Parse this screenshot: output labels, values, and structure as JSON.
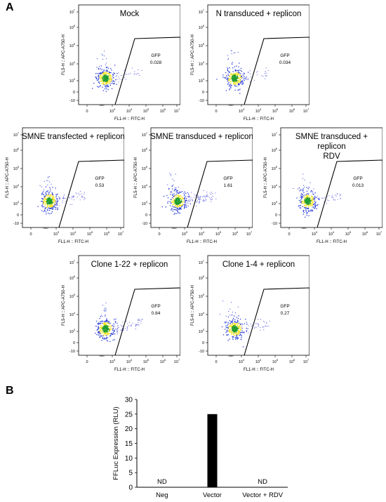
{
  "figure": {
    "label_a": "A",
    "label_b": "B"
  },
  "chart_data": [
    {
      "type": "scatter",
      "title": "Mock",
      "gate": {
        "label": "GFP",
        "value": "0.028"
      },
      "xlabel": "FL1-H :: FITC-H",
      "ylabel": "FL5-H :: APC-A750-H",
      "xticks": [
        "0",
        "10³",
        "10⁴",
        "10⁵",
        "10⁶",
        "10⁷"
      ],
      "yticks": [
        "-10",
        "0",
        "10³",
        "10⁴",
        "10⁵",
        "10⁶",
        "10⁷"
      ],
      "x_ticks": [
        "0",
        "10^3",
        "10^4",
        "10^5",
        "10^6",
        "10^7"
      ],
      "y_ticks": [
        "-10",
        "0",
        "10^3",
        "10^4",
        "10^5",
        "10^6",
        "10^7"
      ],
      "note": "flow cytometry dot plot; gate value is % GFP+"
    },
    {
      "type": "scatter",
      "title": "N transduced + replicon",
      "gate": {
        "label": "GFP",
        "value": "0.034"
      },
      "xlabel": "FL1-H :: FITC-H",
      "ylabel": "FL5-H :: APC-A750-H"
    },
    {
      "type": "scatter",
      "title": "SMNE transfected + replicon",
      "gate": {
        "label": "GFP",
        "value": "0.53"
      },
      "xlabel": "FL1-H :: FITC-H",
      "ylabel": "FL5-H :: APC-A750-H"
    },
    {
      "type": "scatter",
      "title": "SMNE transduced + replicon",
      "gate": {
        "label": "GFP",
        "value": "1.61"
      },
      "xlabel": "FL1-H :: FITC-H",
      "ylabel": "FL5-H :: APC-A750-H"
    },
    {
      "type": "scatter",
      "title": "SMNE transduced + replicon RDV",
      "gate": {
        "label": "GFP",
        "value": "0.013"
      },
      "xlabel": "FL1-H :: FITC-H",
      "ylabel": "FL5-H :: APC-A750-H"
    },
    {
      "type": "scatter",
      "title": "Clone 1-22 + replicon",
      "gate": {
        "label": "GFP",
        "value": "0.84"
      },
      "xlabel": "FL1-H :: FITC-H",
      "ylabel": "FL5-H :: APC-A750-H"
    },
    {
      "type": "scatter",
      "title": "Clone 1-4 + replicon",
      "gate": {
        "label": "GFP",
        "value": "0.27"
      },
      "xlabel": "FL1-H :: FITC-H",
      "ylabel": "FL5-H :: APC-A750-H"
    },
    {
      "type": "bar",
      "categories": [
        "Neg",
        "Vector",
        "Vector + RDV"
      ],
      "values": [
        0,
        25,
        0
      ],
      "data_labels": [
        "ND",
        "",
        "ND"
      ],
      "ylabel": "FFLuc Expression (RLU)",
      "ylim": [
        0,
        30
      ],
      "yticks": [
        0,
        5,
        10,
        15,
        20,
        25,
        30
      ],
      "bar_color": "#000000"
    }
  ],
  "flow_panels": [
    {
      "title_lines": [
        "Mock"
      ],
      "gate_label": "GFP",
      "gate_value": "0.028"
    },
    {
      "title_lines": [
        "N transduced + replicon"
      ],
      "gate_label": "GFP",
      "gate_value": "0.034"
    },
    {
      "title_lines": [
        "SMNE transfected + replicon"
      ],
      "gate_label": "GFP",
      "gate_value": "0.53"
    },
    {
      "title_lines": [
        "SMNE transduced + replicon"
      ],
      "gate_label": "GFP",
      "gate_value": "1.61"
    },
    {
      "title_lines": [
        "SMNE transduced +",
        "replicon",
        "RDV"
      ],
      "gate_label": "GFP",
      "gate_value": "0.013"
    },
    {
      "title_lines": [
        "Clone 1-22 + replicon"
      ],
      "gate_label": "GFP",
      "gate_value": "0.84"
    },
    {
      "title_lines": [
        "Clone 1-4 + replicon"
      ],
      "gate_label": "GFP",
      "gate_value": "0.27"
    }
  ],
  "flow_axes": {
    "xlabel": "FL1-H :: FITC-H",
    "ylabel": "FL5-H :: APC-A750-H",
    "xticks": [
      "0",
      "10",
      "10",
      "10",
      "10",
      "10"
    ],
    "xtick_exp": [
      "",
      "3",
      "4",
      "5",
      "6",
      "7"
    ],
    "yticks": [
      "-10",
      "0",
      "10",
      "10",
      "10",
      "10",
      "10"
    ],
    "ytick_exp": [
      "",
      "",
      "3",
      "4",
      "5",
      "6",
      "7"
    ]
  },
  "colors": {
    "dense": "#1a9a2a",
    "mid": "#f5e21a",
    "outer": "#2a3cd8",
    "sparse": "#5a5ae0",
    "gate": "#000000"
  }
}
